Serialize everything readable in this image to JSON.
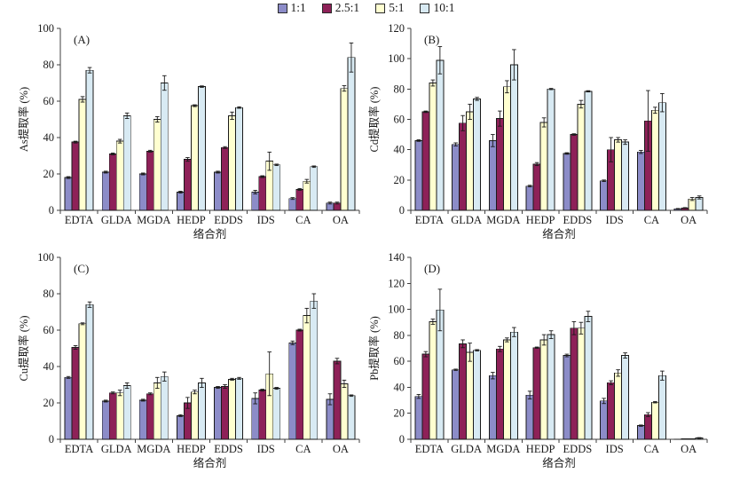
{
  "axis_x_label": "络合剂",
  "legend": {
    "labels": [
      "1:1",
      "2.5:1",
      "5:1",
      "10:1"
    ]
  },
  "colors": {
    "ratio_1_1": "#8c8cc8",
    "ratio_2_5_1": "#8e2158",
    "ratio_5_1": "#ffffd0",
    "ratio_10_1": "#d8eaf3",
    "bar_stroke": "#1a1a1a",
    "axis": "#3f3f3f"
  },
  "chart_data": [
    {
      "type": "bar",
      "panel_tag": "(A)",
      "ylabel": "As提取率 (%)",
      "xlabel": "络合剂",
      "ylim": [
        0,
        100
      ],
      "ytick_step": 20,
      "grid": false,
      "legend_position": "top-center",
      "categories": [
        "EDTA",
        "GLDA",
        "MGDA",
        "HEDP",
        "EDDS",
        "IDS",
        "CA",
        "OA"
      ],
      "series": [
        {
          "name": "1:1",
          "color": "#8c8cc8",
          "values": [
            18,
            21,
            20,
            10,
            21,
            10,
            6.5,
            4
          ],
          "errors": [
            0.5,
            0.5,
            0.5,
            0.5,
            0.5,
            1,
            0.5,
            0.5
          ]
        },
        {
          "name": "2.5:1",
          "color": "#8e2158",
          "values": [
            37.5,
            31,
            32.5,
            28,
            34.5,
            18.5,
            11.5,
            4
          ],
          "errors": [
            0.5,
            0.5,
            0.5,
            1,
            0.5,
            0.5,
            0.5,
            0.5
          ]
        },
        {
          "name": "5:1",
          "color": "#ffffd0",
          "values": [
            61,
            38,
            50,
            57.5,
            52,
            27,
            16,
            67
          ],
          "errors": [
            1.5,
            1,
            1.5,
            0.5,
            2,
            5,
            1,
            1.5
          ]
        },
        {
          "name": "10:1",
          "color": "#d8eaf3",
          "values": [
            77,
            52,
            70,
            68,
            56.5,
            25,
            24,
            84
          ],
          "errors": [
            1.5,
            1.5,
            4,
            0.4,
            0.4,
            0.4,
            0.4,
            8
          ]
        }
      ]
    },
    {
      "type": "bar",
      "panel_tag": "(B)",
      "ylabel": "Cd提取率 (%)",
      "xlabel": "络合剂",
      "ylim": [
        0,
        120
      ],
      "ytick_step": 20,
      "grid": false,
      "legend_position": "top-center",
      "categories": [
        "EDTA",
        "GLDA",
        "MGDA",
        "HEDP",
        "EDDS",
        "IDS",
        "CA",
        "OA"
      ],
      "series": [
        {
          "name": "1:1",
          "color": "#8c8cc8",
          "values": [
            46,
            43.5,
            46,
            16,
            37.5,
            19.5,
            38.5,
            1
          ],
          "errors": [
            0.5,
            1,
            4,
            0.5,
            0.5,
            0.5,
            1,
            0.2
          ]
        },
        {
          "name": "2.5:1",
          "color": "#8e2158",
          "values": [
            65,
            57.5,
            60.5,
            30.5,
            50,
            40,
            59,
            1.5
          ],
          "errors": [
            0.5,
            5,
            5,
            1,
            0.5,
            8,
            20,
            0.3
          ]
        },
        {
          "name": "5:1",
          "color": "#ffffd0",
          "values": [
            84,
            65,
            81.5,
            58,
            70,
            46.5,
            66,
            7.5
          ],
          "errors": [
            2,
            5,
            4,
            3,
            2.5,
            1.5,
            2,
            1
          ]
        },
        {
          "name": "10:1",
          "color": "#d8eaf3",
          "values": [
            99,
            73.5,
            96,
            80,
            78.5,
            45,
            71,
            8.5
          ],
          "errors": [
            9,
            1,
            10,
            0.4,
            0.4,
            1.5,
            6,
            1
          ]
        }
      ]
    },
    {
      "type": "bar",
      "panel_tag": "(C)",
      "ylabel": "Cu提取率 (%)",
      "xlabel": "络合剂",
      "ylim": [
        0,
        100
      ],
      "ytick_step": 20,
      "grid": false,
      "legend_position": "top-center",
      "categories": [
        "EDTA",
        "GLDA",
        "MGDA",
        "HEDP",
        "EDDS",
        "IDS",
        "CA",
        "OA"
      ],
      "series": [
        {
          "name": "1:1",
          "color": "#8c8cc8",
          "values": [
            34,
            21,
            21.5,
            13,
            28.5,
            22.5,
            53,
            22
          ],
          "errors": [
            0.5,
            0.5,
            0.5,
            0.5,
            0.5,
            3,
            1,
            3
          ]
        },
        {
          "name": "2.5:1",
          "color": "#8e2158",
          "values": [
            50.5,
            25.5,
            25,
            20,
            29,
            27,
            60,
            43
          ],
          "errors": [
            1,
            0.5,
            0.5,
            3,
            1,
            0.5,
            0.5,
            1.5
          ]
        },
        {
          "name": "5:1",
          "color": "#ffffd0",
          "values": [
            63.5,
            25.5,
            31,
            26,
            33,
            36,
            68,
            30.5
          ],
          "errors": [
            0.5,
            1.5,
            3,
            1,
            0.5,
            12,
            4,
            2
          ]
        },
        {
          "name": "10:1",
          "color": "#d8eaf3",
          "values": [
            74,
            29.5,
            34.5,
            31,
            33.5,
            28,
            76,
            24
          ],
          "errors": [
            1.5,
            1.5,
            2.5,
            2.5,
            0.5,
            0.5,
            4,
            0.4
          ]
        }
      ]
    },
    {
      "type": "bar",
      "panel_tag": "(D)",
      "ylabel": "Pb提取率 (%)",
      "xlabel": "络合剂",
      "ylim": [
        0,
        140
      ],
      "ytick_step": 20,
      "grid": false,
      "legend_position": "top-center",
      "categories": [
        "EDTA",
        "GLDA",
        "MGDA",
        "HEDP",
        "EDDS",
        "IDS",
        "CA",
        "OA"
      ],
      "series": [
        {
          "name": "1:1",
          "color": "#8c8cc8",
          "values": [
            33,
            53.5,
            49,
            34,
            64.5,
            29.5,
            10.5,
            0.2
          ],
          "errors": [
            1.5,
            0.5,
            2.5,
            3,
            1,
            2,
            0.5,
            0
          ]
        },
        {
          "name": "2.5:1",
          "color": "#8e2158",
          "values": [
            65.5,
            73.5,
            69.5,
            70.5,
            85.5,
            43.5,
            19,
            0.3
          ],
          "errors": [
            2,
            3,
            2,
            0.5,
            5,
            1.5,
            1.5,
            0
          ]
        },
        {
          "name": "5:1",
          "color": "#ffffd0",
          "values": [
            90.5,
            67,
            76.5,
            76.5,
            85.5,
            51,
            28.5,
            0.5
          ],
          "errors": [
            2,
            7,
            1.5,
            4,
            4.5,
            2.5,
            0.5,
            0
          ]
        },
        {
          "name": "10:1",
          "color": "#d8eaf3",
          "values": [
            99.5,
            68.5,
            82.5,
            80.5,
            94.5,
            64.5,
            49,
            1
          ],
          "errors": [
            16,
            0.5,
            3.5,
            3,
            4,
            2,
            3.5,
            0.3
          ]
        }
      ]
    }
  ]
}
